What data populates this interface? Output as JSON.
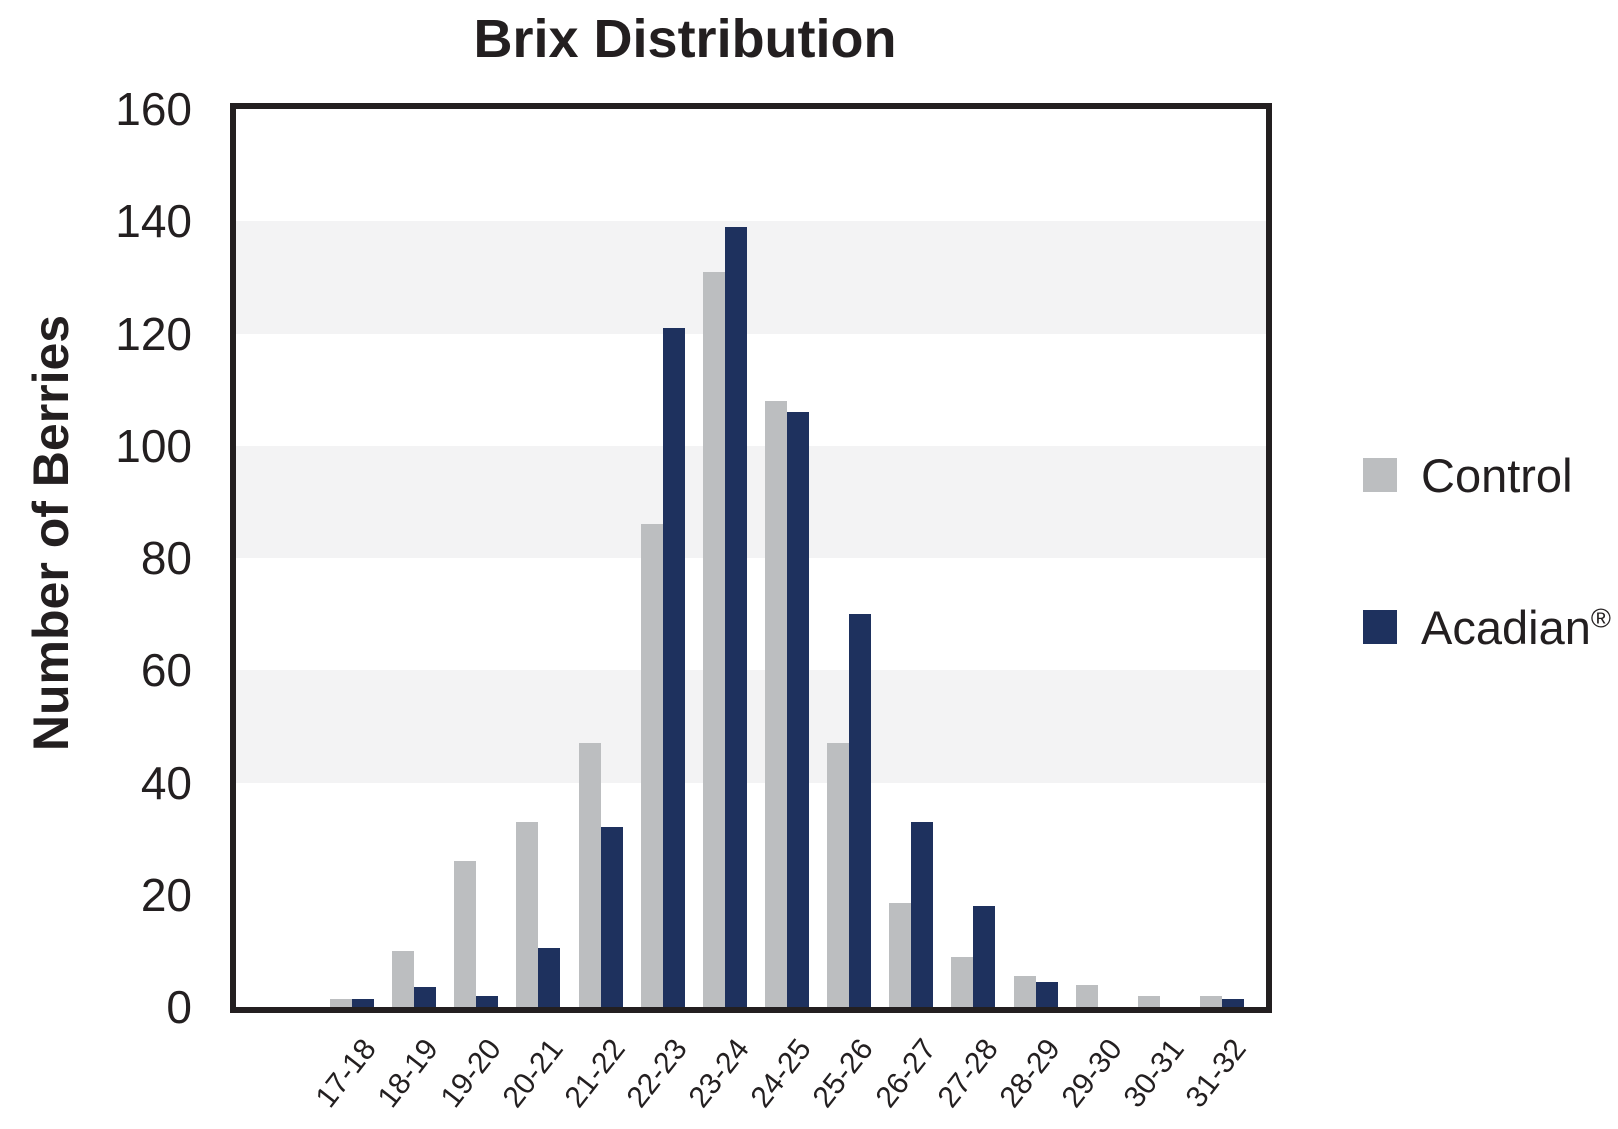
{
  "title": "Brix Distribution",
  "y_axis": {
    "title": "Number of Berries",
    "max": 160,
    "tick_step": 20
  },
  "legend": {
    "items": [
      {
        "id": "control",
        "label": "Control",
        "suffix": "",
        "color": "#bcbec0"
      },
      {
        "id": "acadian",
        "label": "Acadian",
        "suffix": "®",
        "color": "#1e315e"
      }
    ],
    "position": "right"
  },
  "colors": {
    "control_bar": "#bcbec0",
    "acadian_bar": "#1e315e",
    "shaded_band": "#f3f3f4",
    "axis": "#231f20",
    "text": "#231f20",
    "background": "#ffffff"
  },
  "chart_data": {
    "type": "bar",
    "title": "Brix Distribution",
    "xlabel": "",
    "ylabel": "Number of Berries",
    "categories": [
      "17-18",
      "18-19",
      "19-20",
      "20-21",
      "21-22",
      "22-23",
      "23-24",
      "24-25",
      "25-26",
      "26-27",
      "27-28",
      "28-29",
      "29-30",
      "30-31",
      "31-32"
    ],
    "series": [
      {
        "name": "Control",
        "color": "#bcbec0",
        "values": [
          1.5,
          10,
          26,
          33,
          47,
          86,
          131,
          108,
          47,
          18.5,
          9,
          5.5,
          4,
          2,
          2
        ]
      },
      {
        "name": "Acadian®",
        "color": "#1e315e",
        "values": [
          1.5,
          3.5,
          2,
          10.5,
          32,
          121,
          139,
          106,
          70,
          33,
          18,
          4.5,
          0,
          0,
          1.5
        ]
      }
    ],
    "ylim": [
      0,
      160
    ],
    "yticks": [
      0,
      20,
      40,
      60,
      80,
      100,
      120,
      140,
      160
    ],
    "shaded_bands": [
      [
        40,
        60
      ],
      [
        80,
        100
      ],
      [
        120,
        140
      ]
    ],
    "grid": "alternating-horizontal-bands",
    "legend_position": "right"
  }
}
